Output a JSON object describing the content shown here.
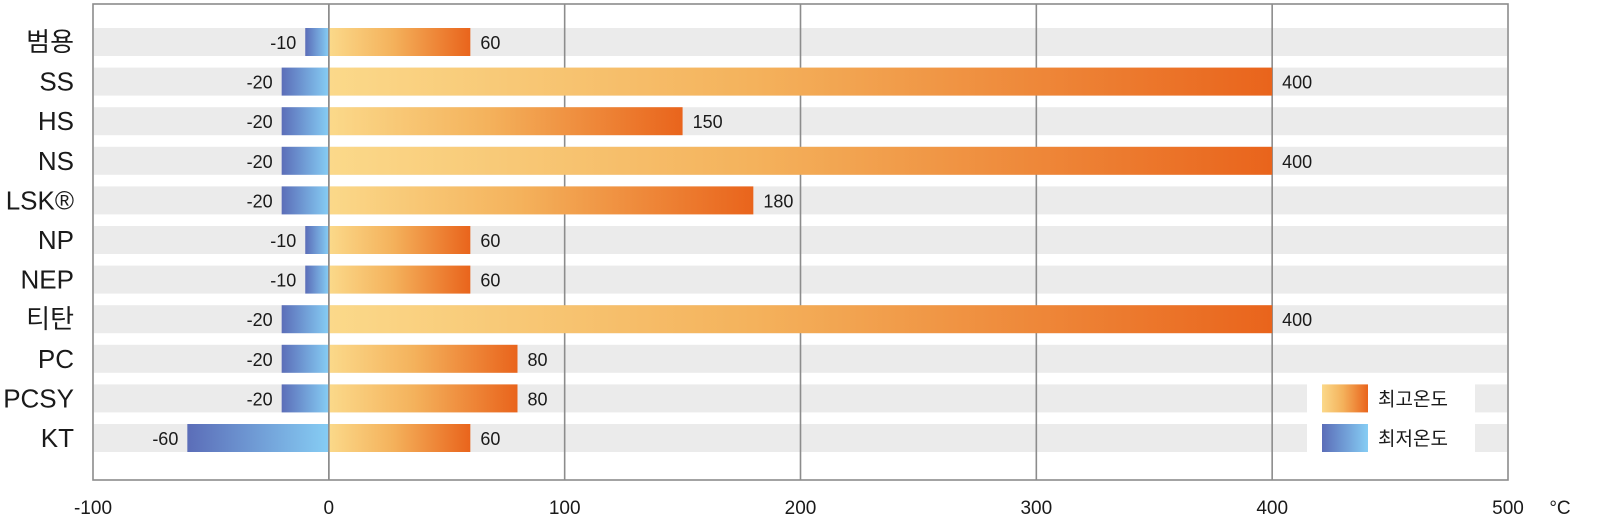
{
  "chart_data": {
    "type": "bar",
    "orientation": "horizontal",
    "categories": [
      "범용",
      "SS",
      "HS",
      "NS",
      "LSK®",
      "NP",
      "NEP",
      "티탄",
      "PC",
      "PCSY",
      "KT"
    ],
    "series": [
      {
        "name": "최고온도",
        "values": [
          60,
          400,
          150,
          400,
          180,
          60,
          60,
          400,
          80,
          80,
          60
        ],
        "color_start": "#fbd98a",
        "color_end": "#e9641c"
      },
      {
        "name": "최저온도",
        "values": [
          -10,
          -20,
          -20,
          -20,
          -20,
          -10,
          -10,
          -20,
          -20,
          -20,
          -60
        ],
        "color_start": "#86cdf4",
        "color_end": "#5b6db8"
      }
    ],
    "xticks": [
      -100,
      0,
      100,
      200,
      300,
      400,
      500
    ],
    "xtick_labels": [
      "-100",
      "0",
      "100",
      "200",
      "300",
      "400",
      "500"
    ],
    "xunit": "°C",
    "xlim": [
      -100,
      500
    ],
    "grid": true,
    "legend_position": "bottom-right"
  }
}
